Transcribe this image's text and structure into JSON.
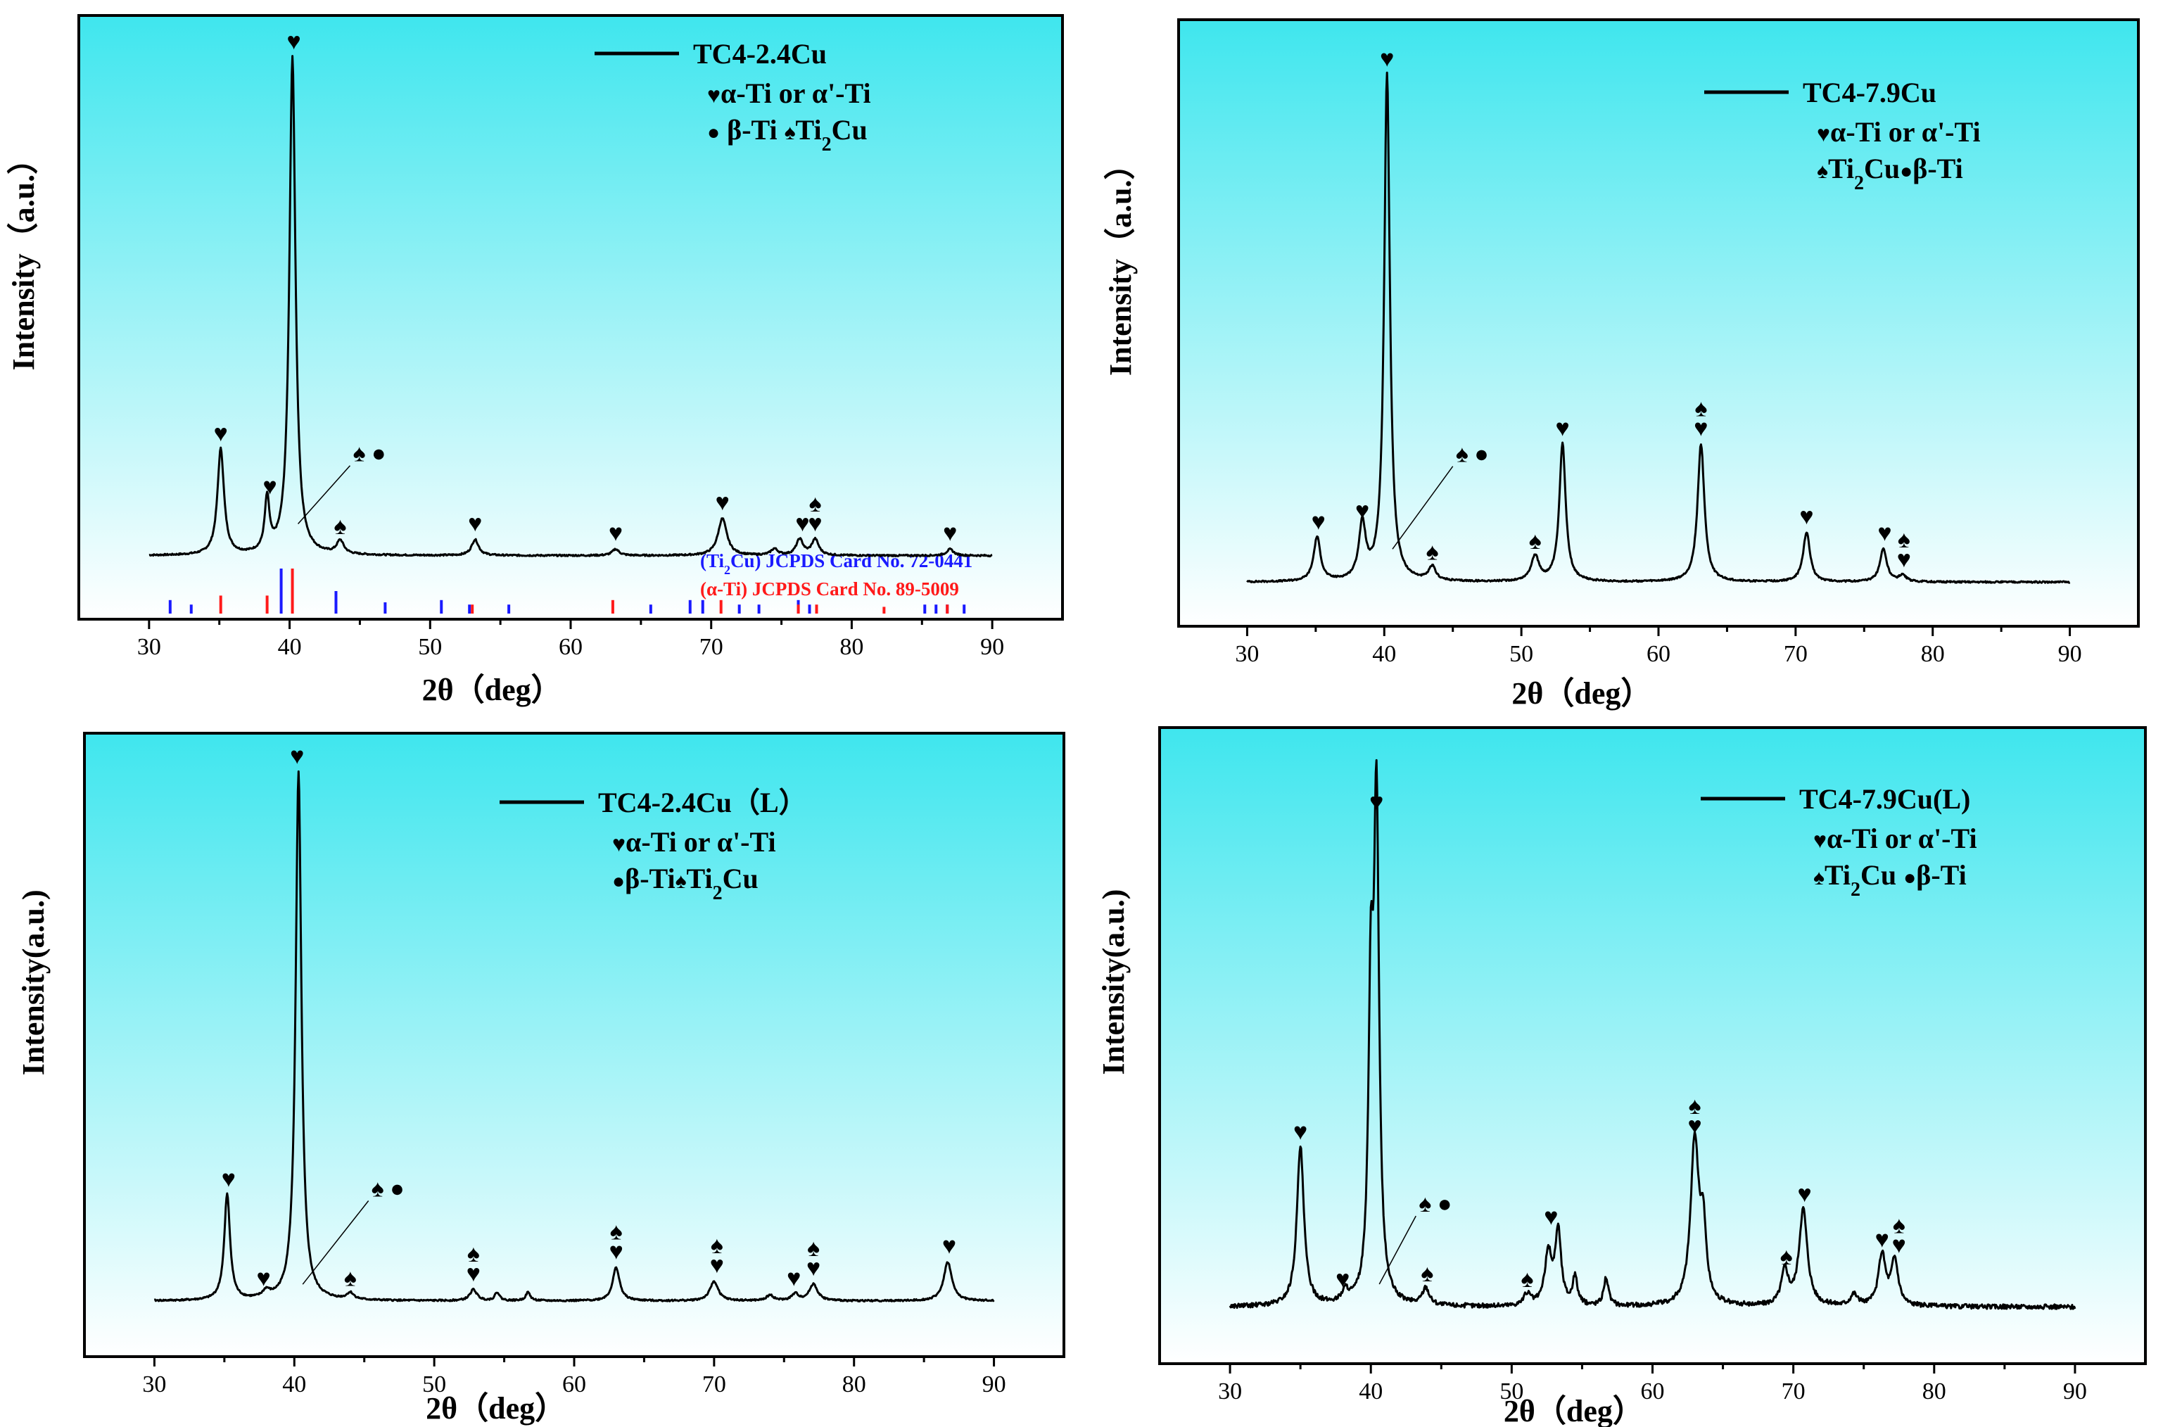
{
  "chart_data": [
    {
      "type": "line",
      "legend": "TC4-2.4Cu",
      "legend_lines": [
        {
          "kind": "heart",
          "text": "α-Ti or α'-Ti"
        },
        {
          "kind": "mixed",
          "parts": [
            {
              "s": "●",
              "t": " β-Ti "
            },
            {
              "s": "♠",
              "t": "Ti"
            },
            {
              "sub": "2"
            },
            {
              "t": "Cu"
            }
          ]
        }
      ],
      "xlabel": "2θ（deg）",
      "ylabel": "Intensity（a.u.）",
      "xlim": [
        25,
        95
      ],
      "ylim": [
        -0.12,
        1.02
      ],
      "baseline": 0.0,
      "xticks": [
        30,
        40,
        50,
        60,
        70,
        80,
        90
      ],
      "series": [
        {
          "name": "TC4-2.4Cu",
          "peaks": [
            [
              35.1,
              0.2,
              0.28
            ],
            [
              38.4,
              0.1,
              0.2
            ],
            [
              40.2,
              0.94,
              0.26
            ],
            [
              43.6,
              0.025,
              0.3
            ],
            [
              53.2,
              0.03,
              0.3
            ],
            [
              63.2,
              0.012,
              0.3
            ],
            [
              70.8,
              0.07,
              0.38
            ],
            [
              74.5,
              0.012,
              0.3
            ],
            [
              76.3,
              0.03,
              0.3
            ],
            [
              77.4,
              0.03,
              0.3
            ],
            [
              87.0,
              0.012,
              0.3
            ]
          ]
        }
      ],
      "markers": [
        {
          "x": 35.1,
          "y": 0.2,
          "symbols": [
            "♥"
          ]
        },
        {
          "x": 38.6,
          "y": 0.1,
          "symbols": [
            "♥"
          ]
        },
        {
          "x": 40.3,
          "y": 0.94,
          "symbols": [
            "♥"
          ]
        },
        {
          "x": 43.6,
          "y": 0.025,
          "symbols": [
            "♠"
          ]
        },
        {
          "x": 53.2,
          "y": 0.03,
          "symbols": [
            "♥"
          ]
        },
        {
          "x": 63.2,
          "y": 0.012,
          "symbols": [
            "♥"
          ]
        },
        {
          "x": 70.8,
          "y": 0.07,
          "symbols": [
            "♥"
          ]
        },
        {
          "x": 76.5,
          "y": 0.03,
          "symbols": [
            "♥"
          ]
        },
        {
          "x": 77.4,
          "y": 0.03,
          "symbols": [
            "♥",
            "♠"
          ]
        },
        {
          "x": 87.0,
          "y": 0.012,
          "symbols": [
            "♥"
          ]
        }
      ],
      "callout": {
        "from_x": 40.6,
        "from_y": 0.06,
        "to_x": 44.3,
        "to_y": 0.17,
        "symbols": "♠ ●"
      },
      "reference_patterns": [
        {
          "phase": "Ti2Cu",
          "label_parts": [
            {
              "t": "("
            },
            {
              "t": "Ti"
            },
            {
              "sub": "2"
            },
            {
              "t": "Cu"
            },
            {
              "t": ")"
            },
            {
              "t": " JCPDS Card No. 72-0441"
            }
          ],
          "color": "#1a1aff",
          "lines": [
            [
              31.5,
              0.3
            ],
            [
              33.0,
              0.2
            ],
            [
              39.4,
              1.0
            ],
            [
              43.3,
              0.5
            ],
            [
              46.8,
              0.25
            ],
            [
              50.8,
              0.3
            ],
            [
              52.8,
              0.2
            ],
            [
              55.6,
              0.2
            ],
            [
              65.7,
              0.2
            ],
            [
              68.5,
              0.3
            ],
            [
              69.4,
              0.3
            ],
            [
              72.0,
              0.2
            ],
            [
              73.4,
              0.2
            ],
            [
              76.2,
              0.3
            ],
            [
              77.0,
              0.2
            ],
            [
              85.2,
              0.2
            ],
            [
              86.0,
              0.2
            ],
            [
              86.8,
              0.2
            ],
            [
              88.0,
              0.2
            ]
          ]
        },
        {
          "phase": "α-Ti",
          "label_parts": [
            {
              "t": "(α-Ti)"
            },
            {
              "t": " JCPDS Card No. 89-5009"
            }
          ],
          "color": "#ff1a1a",
          "lines": [
            [
              35.1,
              0.4
            ],
            [
              38.4,
              0.4
            ],
            [
              40.2,
              1.0
            ],
            [
              53.0,
              0.2
            ],
            [
              63.0,
              0.3
            ],
            [
              70.7,
              0.3
            ],
            [
              76.2,
              0.2
            ],
            [
              77.5,
              0.2
            ],
            [
              82.3,
              0.15
            ],
            [
              86.8,
              0.2
            ]
          ]
        }
      ]
    },
    {
      "type": "line",
      "legend": "TC4-7.9Cu",
      "legend_lines": [
        {
          "kind": "heart",
          "text": "α-Ti or α'-Ti"
        },
        {
          "kind": "mixed",
          "parts": [
            {
              "s": "♠",
              "t": "Ti"
            },
            {
              "sub": "2"
            },
            {
              "t": "Cu"
            },
            {
              "s": "●",
              "t": "β-Ti"
            }
          ]
        }
      ],
      "xlabel": "2θ（deg）",
      "ylabel": "Intensity（a.u.）",
      "xlim": [
        25,
        95
      ],
      "ylim": [
        -0.08,
        1.02
      ],
      "baseline": 0.0,
      "xticks": [
        30,
        40,
        50,
        60,
        70,
        80,
        90
      ],
      "series": [
        {
          "name": "TC4-7.9Cu",
          "peaks": [
            [
              35.1,
              0.08,
              0.3
            ],
            [
              38.4,
              0.1,
              0.3
            ],
            [
              40.2,
              0.92,
              0.25
            ],
            [
              43.5,
              0.025,
              0.3
            ],
            [
              51.0,
              0.045,
              0.35
            ],
            [
              53.0,
              0.25,
              0.28
            ],
            [
              63.1,
              0.25,
              0.3
            ],
            [
              70.8,
              0.09,
              0.3
            ],
            [
              76.4,
              0.06,
              0.3
            ],
            [
              77.8,
              0.012,
              0.3
            ]
          ]
        }
      ],
      "markers": [
        {
          "x": 35.2,
          "y": 0.08,
          "symbols": [
            "♥"
          ]
        },
        {
          "x": 38.4,
          "y": 0.1,
          "symbols": [
            "♥"
          ]
        },
        {
          "x": 40.2,
          "y": 0.92,
          "symbols": [
            "♥"
          ]
        },
        {
          "x": 43.5,
          "y": 0.025,
          "symbols": [
            "♠"
          ]
        },
        {
          "x": 51.0,
          "y": 0.045,
          "symbols": [
            "♠"
          ]
        },
        {
          "x": 53.0,
          "y": 0.25,
          "symbols": [
            "♥"
          ]
        },
        {
          "x": 63.1,
          "y": 0.25,
          "symbols": [
            "♥",
            "♠"
          ]
        },
        {
          "x": 70.8,
          "y": 0.09,
          "symbols": [
            "♥"
          ]
        },
        {
          "x": 76.5,
          "y": 0.06,
          "symbols": [
            "♥"
          ]
        },
        {
          "x": 77.9,
          "y": 0.012,
          "symbols": [
            "♥",
            "♠"
          ]
        }
      ],
      "callout": {
        "from_x": 40.6,
        "from_y": 0.06,
        "to_x": 45.0,
        "to_y": 0.21,
        "symbols": "♠ ●"
      }
    },
    {
      "type": "line",
      "legend": "TC4-2.4Cu（L）",
      "legend_lines": [
        {
          "kind": "heart",
          "text": "α-Ti or α'-Ti"
        },
        {
          "kind": "mixed",
          "parts": [
            {
              "s": "●",
              "t": "β-Ti"
            },
            {
              "s": "♠",
              "t": "Ti"
            },
            {
              "sub": "2"
            },
            {
              "t": "Cu"
            }
          ]
        }
      ],
      "xlabel": "2θ（deg）",
      "ylabel": "Intensity(a.u.)",
      "xlim": [
        25,
        95
      ],
      "ylim": [
        -0.1,
        1.02
      ],
      "baseline": 0.0,
      "xticks": [
        30,
        40,
        50,
        60,
        70,
        80,
        90
      ],
      "series": [
        {
          "name": "TC4-2.4Cu(L)",
          "peaks": [
            [
              35.2,
              0.19,
              0.25
            ],
            [
              38.0,
              0.012,
              0.3
            ],
            [
              40.3,
              0.95,
              0.25
            ],
            [
              44.0,
              0.012,
              0.3
            ],
            [
              52.8,
              0.02,
              0.3
            ],
            [
              54.5,
              0.015,
              0.2
            ],
            [
              56.7,
              0.015,
              0.2
            ],
            [
              63.0,
              0.06,
              0.3
            ],
            [
              70.0,
              0.035,
              0.35
            ],
            [
              74.0,
              0.01,
              0.3
            ],
            [
              75.8,
              0.012,
              0.3
            ],
            [
              77.1,
              0.03,
              0.35
            ],
            [
              86.7,
              0.07,
              0.35
            ]
          ]
        }
      ],
      "markers": [
        {
          "x": 35.3,
          "y": 0.19,
          "symbols": [
            "♥"
          ]
        },
        {
          "x": 37.8,
          "y": 0.012,
          "symbols": [
            "♥"
          ]
        },
        {
          "x": 40.2,
          "y": 0.95,
          "symbols": [
            "♥"
          ]
        },
        {
          "x": 44.0,
          "y": 0.012,
          "symbols": [
            "♠"
          ]
        },
        {
          "x": 52.8,
          "y": 0.02,
          "symbols": [
            "♥",
            "♠"
          ]
        },
        {
          "x": 63.0,
          "y": 0.06,
          "symbols": [
            "♥",
            "♠"
          ]
        },
        {
          "x": 70.2,
          "y": 0.035,
          "symbols": [
            "♥",
            "♠"
          ]
        },
        {
          "x": 75.7,
          "y": 0.012,
          "symbols": [
            "♥"
          ]
        },
        {
          "x": 77.1,
          "y": 0.03,
          "symbols": [
            "♥",
            "♠"
          ]
        },
        {
          "x": 86.8,
          "y": 0.07,
          "symbols": [
            "♥"
          ]
        }
      ],
      "callout": {
        "from_x": 40.6,
        "from_y": 0.03,
        "to_x": 45.3,
        "to_y": 0.18,
        "symbols": "♠ ●"
      }
    },
    {
      "type": "line",
      "legend": "TC4-7.9Cu(L)",
      "legend_lines": [
        {
          "kind": "heart",
          "text": "α-Ti or α'-Ti"
        },
        {
          "kind": "mixed",
          "parts": [
            {
              "s": "♠",
              "t": "Ti"
            },
            {
              "sub": "2"
            },
            {
              "t": "Cu "
            },
            {
              "s": "●",
              "t": "β-Ti"
            }
          ]
        }
      ],
      "xlabel": "2θ（deg）",
      "ylabel": "Intensity(a.u.)",
      "xlim": [
        25,
        95
      ],
      "ylim": [
        -0.1,
        1.02
      ],
      "baseline": 0.0,
      "xticks": [
        30,
        40,
        50,
        60,
        70,
        80,
        90
      ],
      "series": [
        {
          "name": "TC4-7.9Cu(L)",
          "peaks": [
            [
              35.0,
              0.28,
              0.3
            ],
            [
              38.2,
              0.02,
              0.3
            ],
            [
              40.0,
              0.5,
              0.2
            ],
            [
              40.4,
              0.86,
              0.22
            ],
            [
              43.9,
              0.03,
              0.3
            ],
            [
              51.1,
              0.02,
              0.3
            ],
            [
              52.6,
              0.09,
              0.3
            ],
            [
              53.3,
              0.13,
              0.25
            ],
            [
              54.5,
              0.05,
              0.2
            ],
            [
              56.7,
              0.05,
              0.2
            ],
            [
              63.0,
              0.29,
              0.35
            ],
            [
              63.6,
              0.12,
              0.25
            ],
            [
              69.4,
              0.06,
              0.3
            ],
            [
              70.7,
              0.17,
              0.35
            ],
            [
              74.3,
              0.02,
              0.3
            ],
            [
              76.3,
              0.09,
              0.3
            ],
            [
              77.2,
              0.08,
              0.3
            ]
          ]
        }
      ],
      "markers": [
        {
          "x": 35.0,
          "y": 0.28,
          "symbols": [
            "♥"
          ]
        },
        {
          "x": 38.0,
          "y": 0.02,
          "symbols": [
            "♥"
          ]
        },
        {
          "x": 40.4,
          "y": 0.86,
          "symbols": [
            "♥"
          ]
        },
        {
          "x": 44.0,
          "y": 0.03,
          "symbols": [
            "♠"
          ]
        },
        {
          "x": 51.1,
          "y": 0.02,
          "symbols": [
            "♠"
          ]
        },
        {
          "x": 52.8,
          "y": 0.13,
          "symbols": [
            "♥"
          ]
        },
        {
          "x": 63.0,
          "y": 0.29,
          "symbols": [
            "♥",
            "♠"
          ]
        },
        {
          "x": 69.5,
          "y": 0.06,
          "symbols": [
            "♠"
          ]
        },
        {
          "x": 70.8,
          "y": 0.17,
          "symbols": [
            "♥"
          ]
        },
        {
          "x": 76.3,
          "y": 0.09,
          "symbols": [
            "♥"
          ]
        },
        {
          "x": 77.5,
          "y": 0.08,
          "symbols": [
            "♥",
            "♠"
          ]
        }
      ],
      "callout": {
        "from_x": 40.6,
        "from_y": 0.04,
        "to_x": 43.2,
        "to_y": 0.16,
        "symbols": "♠ ●"
      }
    }
  ]
}
